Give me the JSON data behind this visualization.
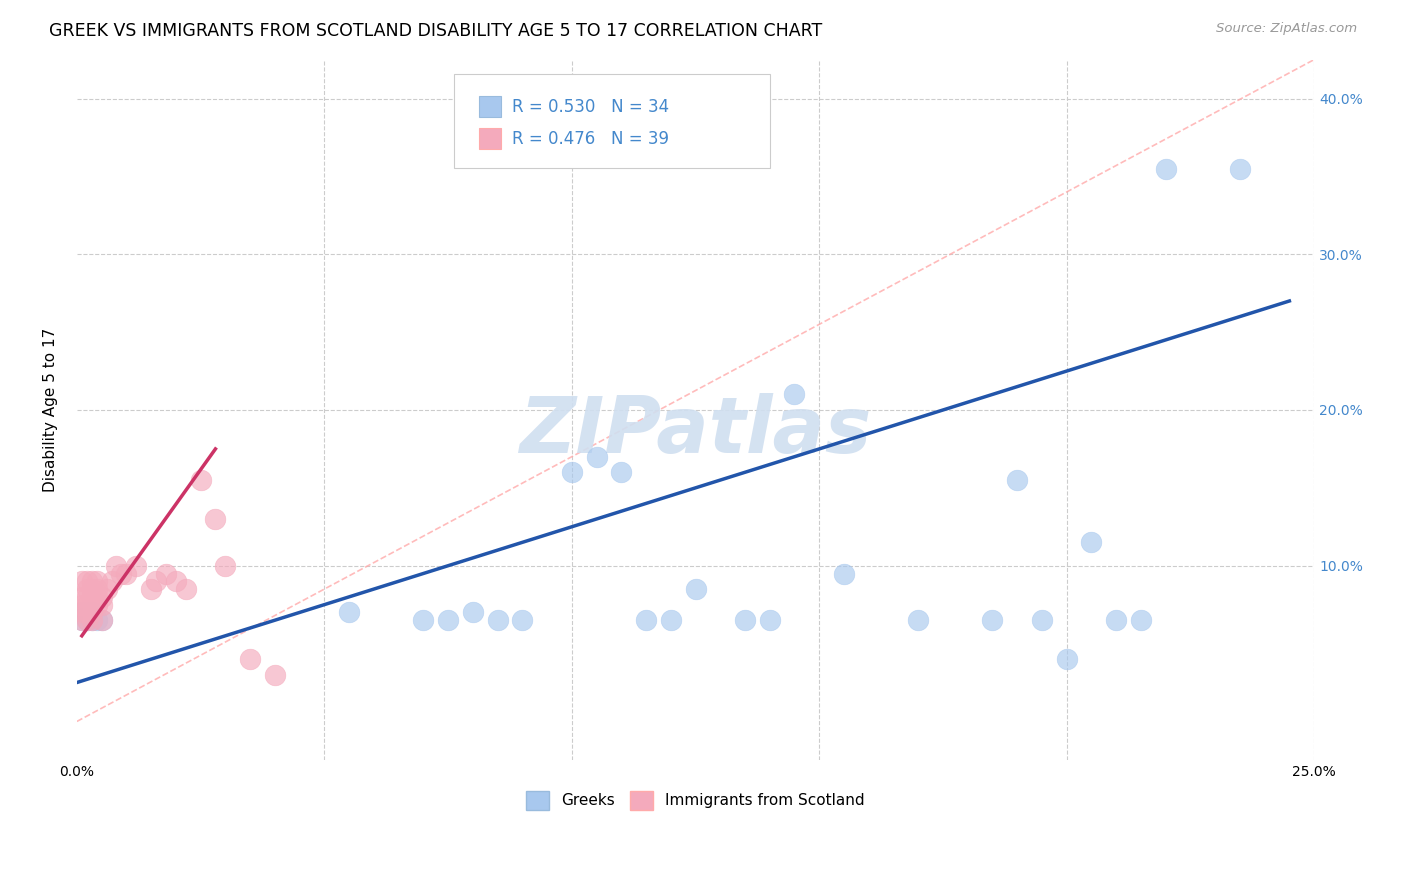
{
  "title": "GREEK VS IMMIGRANTS FROM SCOTLAND DISABILITY AGE 5 TO 17 CORRELATION CHART",
  "source": "Source: ZipAtlas.com",
  "ylabel": "Disability Age 5 to 17",
  "xlim": [
    0,
    0.25
  ],
  "ylim": [
    -0.025,
    0.425
  ],
  "blue_color": "#A8C8EE",
  "pink_color": "#F4AABC",
  "blue_line_color": "#2255AA",
  "pink_line_color": "#CC3366",
  "diag_color": "#FFAAAA",
  "legend_label_blue": "Greeks",
  "legend_label_pink": "Immigrants from Scotland",
  "background_color": "#FFFFFF",
  "grid_color": "#CCCCCC",
  "blue_x": [
    0.001,
    0.001,
    0.002,
    0.002,
    0.003,
    0.003,
    0.004,
    0.005,
    0.055,
    0.07,
    0.075,
    0.08,
    0.085,
    0.09,
    0.1,
    0.105,
    0.11,
    0.115,
    0.12,
    0.125,
    0.135,
    0.14,
    0.145,
    0.155,
    0.17,
    0.185,
    0.19,
    0.195,
    0.2,
    0.205,
    0.21,
    0.215,
    0.22,
    0.235
  ],
  "blue_y": [
    0.07,
    0.065,
    0.07,
    0.065,
    0.07,
    0.065,
    0.065,
    0.065,
    0.07,
    0.065,
    0.065,
    0.07,
    0.065,
    0.065,
    0.16,
    0.17,
    0.16,
    0.065,
    0.065,
    0.085,
    0.065,
    0.065,
    0.21,
    0.095,
    0.065,
    0.065,
    0.155,
    0.065,
    0.04,
    0.115,
    0.065,
    0.065,
    0.355,
    0.355
  ],
  "pink_x": [
    0.001,
    0.001,
    0.001,
    0.001,
    0.001,
    0.002,
    0.002,
    0.002,
    0.002,
    0.002,
    0.002,
    0.003,
    0.003,
    0.003,
    0.003,
    0.003,
    0.004,
    0.004,
    0.004,
    0.004,
    0.005,
    0.005,
    0.005,
    0.006,
    0.007,
    0.008,
    0.009,
    0.01,
    0.012,
    0.015,
    0.016,
    0.018,
    0.02,
    0.022,
    0.025,
    0.028,
    0.03,
    0.035,
    0.04
  ],
  "pink_y": [
    0.065,
    0.07,
    0.075,
    0.08,
    0.09,
    0.065,
    0.07,
    0.075,
    0.08,
    0.085,
    0.09,
    0.065,
    0.07,
    0.08,
    0.085,
    0.09,
    0.075,
    0.08,
    0.085,
    0.09,
    0.065,
    0.075,
    0.08,
    0.085,
    0.09,
    0.1,
    0.095,
    0.095,
    0.1,
    0.085,
    0.09,
    0.095,
    0.09,
    0.085,
    0.155,
    0.13,
    0.1,
    0.04,
    0.03
  ],
  "blue_line_x0": 0.0,
  "blue_line_y0": 0.025,
  "blue_line_x1": 0.245,
  "blue_line_y1": 0.27,
  "pink_line_x0": 0.001,
  "pink_line_y0": 0.055,
  "pink_line_x1": 0.028,
  "pink_line_y1": 0.175,
  "diag_line_x0": 0.0,
  "diag_line_y0": 0.0,
  "diag_line_x1": 0.25,
  "diag_line_y1": 0.425
}
